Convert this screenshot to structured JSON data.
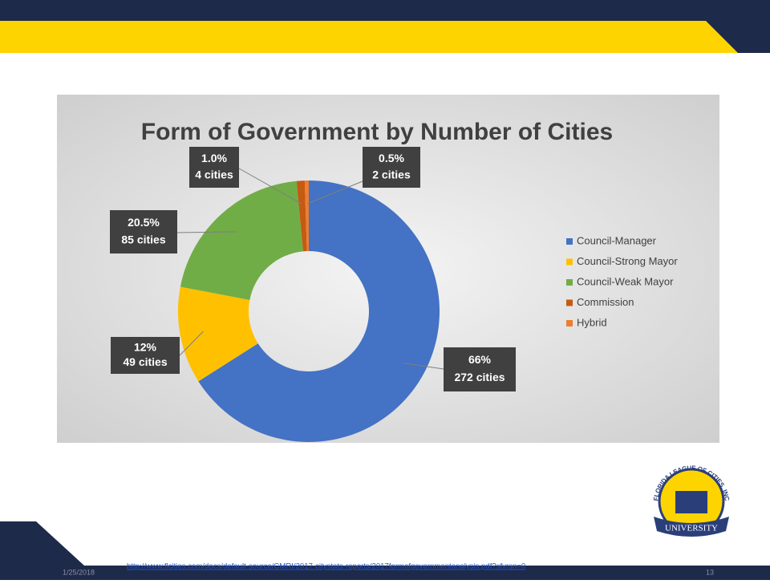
{
  "chart_data": {
    "type": "donut",
    "title": "Form of Government by Number of Cities",
    "categories": [
      "Council-Manager",
      "Council-Strong Mayor",
      "Council-Weak Mayor",
      "Commission",
      "Hybrid"
    ],
    "values": [
      66,
      12,
      20.5,
      1.0,
      0.5
    ],
    "value_labels": [
      "66%",
      "12%",
      "20.5%",
      "1.0%",
      "0.5%"
    ],
    "counts": [
      272,
      49,
      85,
      4,
      2
    ],
    "count_labels": [
      "272 cities",
      "49 cities",
      "85 cities",
      "4 cities",
      "2 cities"
    ],
    "colors": [
      "#4472c4",
      "#ffc000",
      "#70ad47",
      "#c55a11",
      "#ed7d31"
    ],
    "legend": "right"
  },
  "footer": {
    "date": "1/25/2018",
    "url": "http://www.flcities.com/docs/default-source/CMRI/2017-citystats-reports/2017formofgovernmentanalysis.pdf?sfvrsn=0",
    "page": "13"
  },
  "logo": {
    "top": "FLORIDA LEAGUE OF CITIES, INC",
    "bottom": "UNIVERSITY"
  }
}
